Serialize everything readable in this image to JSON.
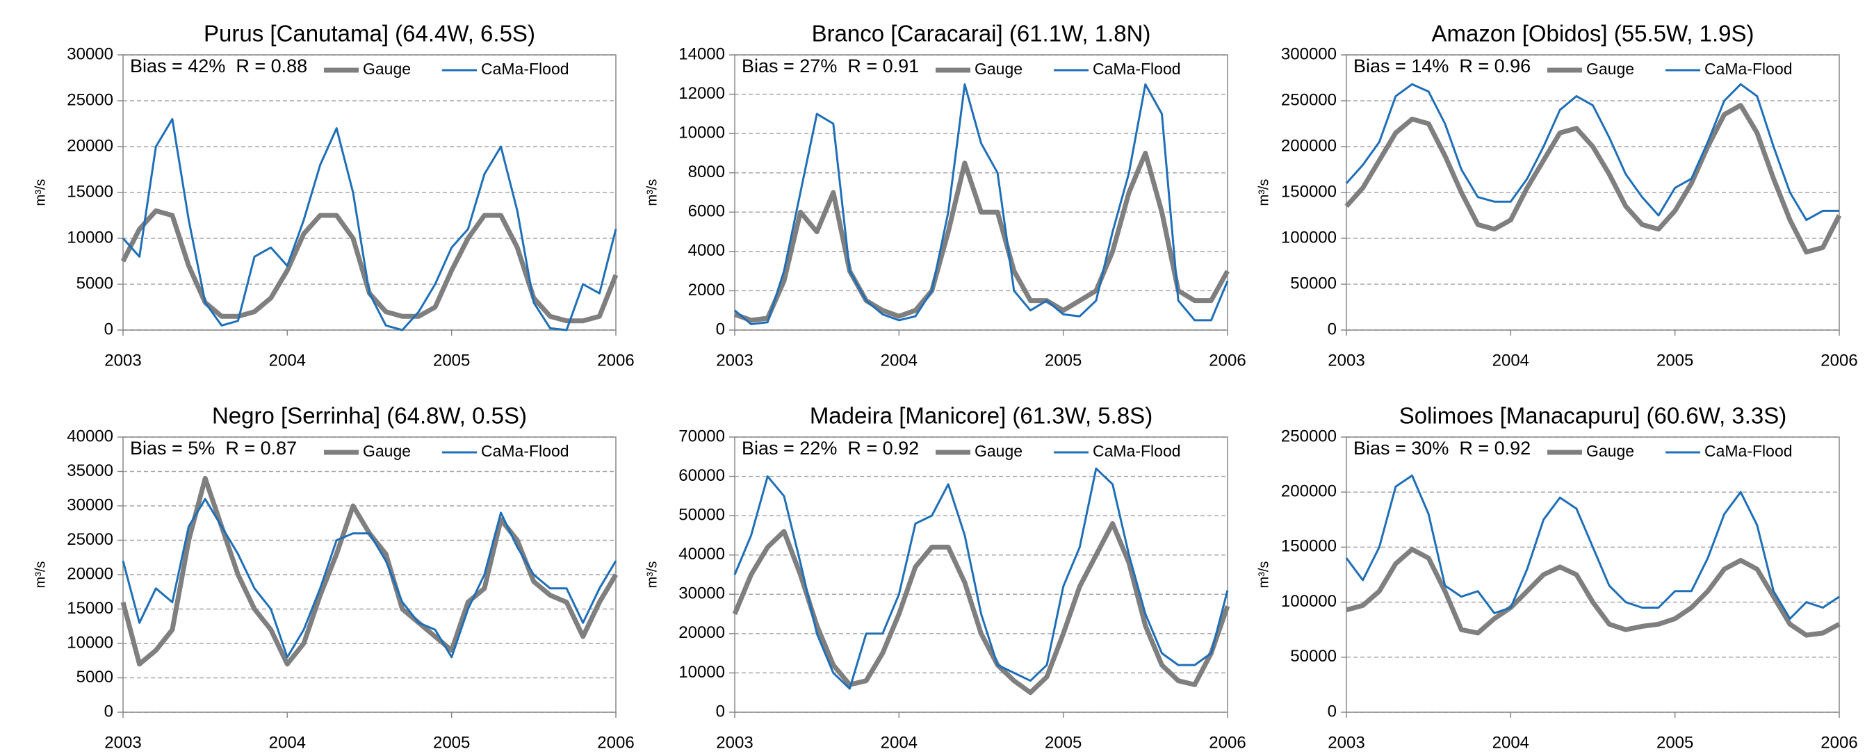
{
  "chart_data": [
    {
      "type": "line",
      "title": "Purus [Canutama] (64.4W, 6.5S)",
      "annotation": "Bias = 42%  R = 0.88",
      "ylabel": "m³/s",
      "x": [
        2003.0,
        2003.1,
        2003.2,
        2003.3,
        2003.4,
        2003.5,
        2003.6,
        2003.7,
        2003.8,
        2003.9,
        2004.0,
        2004.1,
        2004.2,
        2004.3,
        2004.4,
        2004.5,
        2004.6,
        2004.7,
        2004.8,
        2004.9,
        2005.0,
        2005.1,
        2005.2,
        2005.3,
        2005.4,
        2005.5,
        2005.6,
        2005.7,
        2005.8,
        2005.9,
        2006.0
      ],
      "xlim": [
        2003,
        2006
      ],
      "xticks": [
        2003,
        2004,
        2005,
        2006
      ],
      "ylim": [
        0,
        30000
      ],
      "yticks": [
        0,
        5000,
        10000,
        15000,
        20000,
        25000,
        30000
      ],
      "grid": true,
      "legend": "upper right",
      "series": [
        {
          "name": "Gauge",
          "color": "#7f7f7f",
          "values": [
            7500,
            11000,
            13000,
            12500,
            7000,
            3000,
            1500,
            1500,
            2000,
            3500,
            6500,
            10500,
            12500,
            12500,
            10000,
            4000,
            2000,
            1500,
            1500,
            2500,
            6500,
            10000,
            12500,
            12500,
            9000,
            3500,
            1500,
            1000,
            1000,
            1500,
            6000
          ]
        },
        {
          "name": "CaMa-Flood",
          "color": "#1f6fb8",
          "values": [
            10000,
            8000,
            20000,
            23000,
            12000,
            3000,
            500,
            1000,
            8000,
            9000,
            7000,
            12000,
            18000,
            22000,
            15000,
            4000,
            500,
            0,
            2000,
            5000,
            9000,
            11000,
            17000,
            20000,
            13000,
            3000,
            200,
            0,
            5000,
            4000,
            11000
          ]
        }
      ]
    },
    {
      "type": "line",
      "title": "Branco [Caracarai] (61.1W, 1.8N)",
      "annotation": "Bias = 27%  R = 0.91",
      "ylabel": "m³/s",
      "x": [
        2003.0,
        2003.1,
        2003.2,
        2003.3,
        2003.4,
        2003.5,
        2003.6,
        2003.7,
        2003.8,
        2003.9,
        2004.0,
        2004.1,
        2004.2,
        2004.3,
        2004.4,
        2004.5,
        2004.6,
        2004.7,
        2004.8,
        2004.9,
        2005.0,
        2005.1,
        2005.2,
        2005.3,
        2005.4,
        2005.5,
        2005.6,
        2005.7,
        2005.8,
        2005.9,
        2006.0
      ],
      "xlim": [
        2003,
        2006
      ],
      "xticks": [
        2003,
        2004,
        2005,
        2006
      ],
      "ylim": [
        0,
        14000
      ],
      "yticks": [
        0,
        2000,
        4000,
        6000,
        8000,
        10000,
        12000,
        14000
      ],
      "grid": true,
      "legend": "upper right",
      "series": [
        {
          "name": "Gauge",
          "color": "#7f7f7f",
          "values": [
            800,
            500,
            600,
            2500,
            6000,
            5000,
            7000,
            3000,
            1500,
            1000,
            700,
            1000,
            2000,
            5000,
            8500,
            6000,
            6000,
            3000,
            1500,
            1500,
            1000,
            1500,
            2000,
            4000,
            7000,
            9000,
            6000,
            2000,
            1500,
            1500,
            3000
          ]
        },
        {
          "name": "CaMa-Flood",
          "color": "#1f6fb8",
          "values": [
            1000,
            300,
            400,
            3000,
            7000,
            11000,
            10500,
            3000,
            1500,
            800,
            500,
            700,
            2000,
            6000,
            12500,
            9500,
            8000,
            2000,
            1000,
            1500,
            800,
            700,
            1500,
            5000,
            8000,
            12500,
            11000,
            1500,
            500,
            500,
            2500
          ]
        }
      ]
    },
    {
      "type": "line",
      "title": "Amazon [Obidos] (55.5W, 1.9S)",
      "annotation": "Bias = 14%  R = 0.96",
      "ylabel": "m³/s",
      "x": [
        2003.0,
        2003.1,
        2003.2,
        2003.3,
        2003.4,
        2003.5,
        2003.6,
        2003.7,
        2003.8,
        2003.9,
        2004.0,
        2004.1,
        2004.2,
        2004.3,
        2004.4,
        2004.5,
        2004.6,
        2004.7,
        2004.8,
        2004.9,
        2005.0,
        2005.1,
        2005.2,
        2005.3,
        2005.4,
        2005.5,
        2005.6,
        2005.7,
        2005.8,
        2005.9,
        2006.0
      ],
      "xlim": [
        2003,
        2006
      ],
      "xticks": [
        2003,
        2004,
        2005,
        2006
      ],
      "ylim": [
        0,
        300000
      ],
      "yticks": [
        0,
        50000,
        100000,
        150000,
        200000,
        250000,
        300000
      ],
      "grid": true,
      "legend": "upper right",
      "series": [
        {
          "name": "Gauge",
          "color": "#7f7f7f",
          "values": [
            135000,
            155000,
            185000,
            215000,
            230000,
            225000,
            190000,
            150000,
            115000,
            110000,
            120000,
            155000,
            185000,
            215000,
            220000,
            200000,
            170000,
            135000,
            115000,
            110000,
            130000,
            160000,
            200000,
            235000,
            245000,
            215000,
            165000,
            120000,
            85000,
            90000,
            125000
          ]
        },
        {
          "name": "CaMa-Flood",
          "color": "#1f6fb8",
          "values": [
            160000,
            180000,
            205000,
            255000,
            268000,
            260000,
            225000,
            175000,
            145000,
            140000,
            140000,
            165000,
            200000,
            240000,
            255000,
            245000,
            210000,
            170000,
            145000,
            125000,
            155000,
            165000,
            205000,
            250000,
            268000,
            255000,
            200000,
            150000,
            120000,
            130000,
            130000
          ]
        }
      ]
    },
    {
      "type": "line",
      "title": "Negro [Serrinha] (64.8W, 0.5S)",
      "annotation": "Bias = 5%  R = 0.87",
      "ylabel": "m³/s",
      "x": [
        2003.0,
        2003.1,
        2003.2,
        2003.3,
        2003.4,
        2003.5,
        2003.6,
        2003.7,
        2003.8,
        2003.9,
        2004.0,
        2004.1,
        2004.2,
        2004.3,
        2004.4,
        2004.5,
        2004.6,
        2004.7,
        2004.8,
        2004.9,
        2005.0,
        2005.1,
        2005.2,
        2005.3,
        2005.4,
        2005.5,
        2005.6,
        2005.7,
        2005.8,
        2005.9,
        2006.0
      ],
      "xlim": [
        2003,
        2006
      ],
      "xticks": [
        2003,
        2004,
        2005,
        2006
      ],
      "ylim": [
        0,
        40000
      ],
      "yticks": [
        0,
        5000,
        10000,
        15000,
        20000,
        25000,
        30000,
        35000,
        40000
      ],
      "grid": true,
      "legend": "upper right",
      "series": [
        {
          "name": "Gauge",
          "color": "#7f7f7f",
          "values": [
            16000,
            7000,
            9000,
            12000,
            25000,
            34000,
            27000,
            20000,
            15000,
            12000,
            7000,
            10000,
            17000,
            23000,
            30000,
            26000,
            23000,
            15000,
            13000,
            11000,
            9000,
            16000,
            18000,
            28000,
            25000,
            19000,
            17000,
            16000,
            11000,
            16000,
            20000
          ]
        },
        {
          "name": "CaMa-Flood",
          "color": "#1f6fb8",
          "values": [
            22000,
            13000,
            18000,
            16000,
            27000,
            31000,
            27000,
            23000,
            18000,
            15000,
            8000,
            12000,
            18000,
            25000,
            26000,
            26000,
            22000,
            16000,
            13000,
            12000,
            8000,
            15000,
            20000,
            29000,
            24000,
            20000,
            18000,
            18000,
            13000,
            18000,
            22000
          ]
        }
      ]
    },
    {
      "type": "line",
      "title": "Madeira [Manicore] (61.3W, 5.8S)",
      "annotation": "Bias = 22%  R = 0.92",
      "ylabel": "m³/s",
      "x": [
        2003.0,
        2003.1,
        2003.2,
        2003.3,
        2003.4,
        2003.5,
        2003.6,
        2003.7,
        2003.8,
        2003.9,
        2004.0,
        2004.1,
        2004.2,
        2004.3,
        2004.4,
        2004.5,
        2004.6,
        2004.7,
        2004.8,
        2004.9,
        2005.0,
        2005.1,
        2005.2,
        2005.3,
        2005.4,
        2005.5,
        2005.6,
        2005.7,
        2005.8,
        2005.9,
        2006.0
      ],
      "xlim": [
        2003,
        2006
      ],
      "xticks": [
        2003,
        2004,
        2005,
        2006
      ],
      "ylim": [
        0,
        70000
      ],
      "yticks": [
        0,
        10000,
        20000,
        30000,
        40000,
        50000,
        60000,
        70000
      ],
      "grid": true,
      "legend": "upper right",
      "series": [
        {
          "name": "Gauge",
          "color": "#7f7f7f",
          "values": [
            25000,
            35000,
            42000,
            46000,
            35000,
            22000,
            12000,
            7000,
            8000,
            15000,
            25000,
            37000,
            42000,
            42000,
            33000,
            20000,
            12000,
            8000,
            5000,
            9000,
            20000,
            32000,
            40000,
            48000,
            38000,
            22000,
            12000,
            8000,
            7000,
            15000,
            27000
          ]
        },
        {
          "name": "CaMa-Flood",
          "color": "#1f6fb8",
          "values": [
            35000,
            45000,
            60000,
            55000,
            38000,
            20000,
            10000,
            6000,
            20000,
            20000,
            30000,
            48000,
            50000,
            58000,
            45000,
            25000,
            12000,
            10000,
            8000,
            12000,
            32000,
            42000,
            62000,
            58000,
            40000,
            25000,
            15000,
            12000,
            12000,
            15000,
            31000
          ]
        }
      ]
    },
    {
      "type": "line",
      "title": "Solimoes [Manacapuru] (60.6W, 3.3S)",
      "annotation": "Bias = 30%  R = 0.92",
      "ylabel": "m³/s",
      "x": [
        2003.0,
        2003.1,
        2003.2,
        2003.3,
        2003.4,
        2003.5,
        2003.6,
        2003.7,
        2003.8,
        2003.9,
        2004.0,
        2004.1,
        2004.2,
        2004.3,
        2004.4,
        2004.5,
        2004.6,
        2004.7,
        2004.8,
        2004.9,
        2005.0,
        2005.1,
        2005.2,
        2005.3,
        2005.4,
        2005.5,
        2005.6,
        2005.7,
        2005.8,
        2005.9,
        2006.0
      ],
      "xlim": [
        2003,
        2006
      ],
      "xticks": [
        2003,
        2004,
        2005,
        2006
      ],
      "ylim": [
        0,
        250000
      ],
      "yticks": [
        0,
        50000,
        100000,
        150000,
        200000,
        250000
      ],
      "grid": true,
      "legend": "upper right",
      "series": [
        {
          "name": "Gauge",
          "color": "#7f7f7f",
          "values": [
            93000,
            97000,
            110000,
            135000,
            148000,
            140000,
            110000,
            75000,
            72000,
            85000,
            95000,
            110000,
            125000,
            132000,
            125000,
            100000,
            80000,
            75000,
            78000,
            80000,
            85000,
            95000,
            110000,
            130000,
            138000,
            130000,
            105000,
            80000,
            70000,
            72000,
            80000
          ]
        },
        {
          "name": "CaMa-Flood",
          "color": "#1f6fb8",
          "values": [
            140000,
            120000,
            150000,
            205000,
            215000,
            180000,
            115000,
            105000,
            110000,
            90000,
            95000,
            130000,
            175000,
            195000,
            185000,
            150000,
            115000,
            100000,
            95000,
            95000,
            110000,
            110000,
            140000,
            180000,
            200000,
            170000,
            110000,
            85000,
            100000,
            95000,
            105000
          ]
        }
      ]
    }
  ]
}
